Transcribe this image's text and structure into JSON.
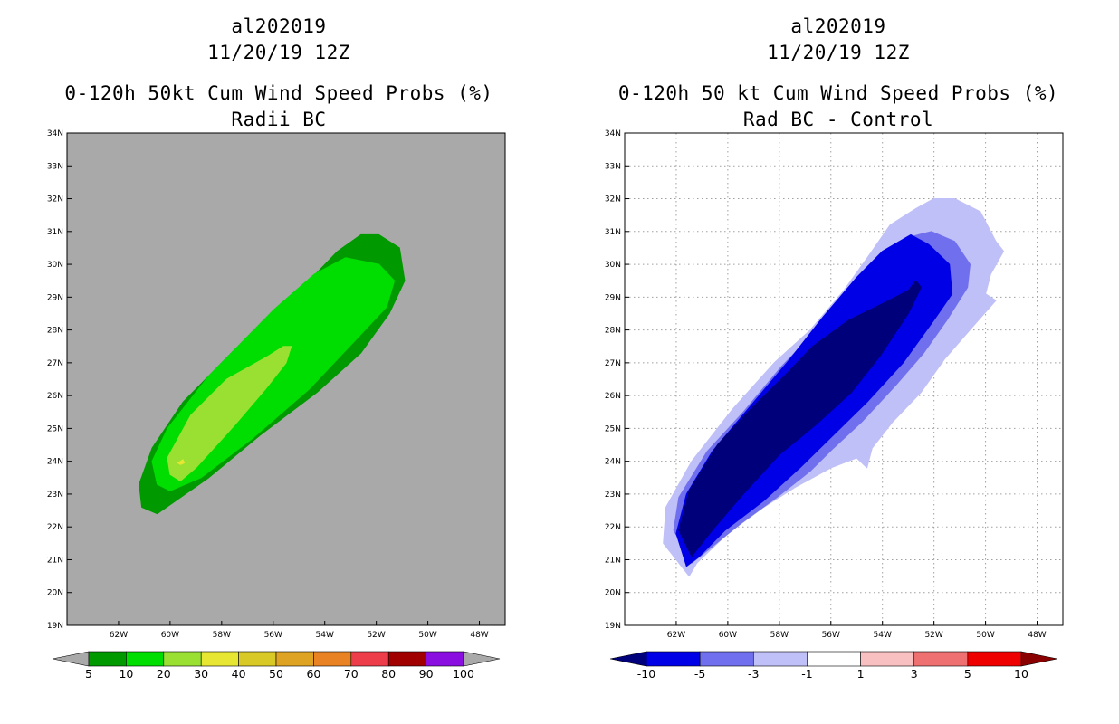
{
  "panels": [
    {
      "storm_id": "al202019",
      "datetime": "11/20/19 12Z",
      "title": "0-120h 50kt Cum Wind Speed Probs (%)",
      "subtitle": "Radii BC",
      "background": "#a9a9a9",
      "grid": false
    },
    {
      "storm_id": "al202019",
      "datetime": "11/20/19 12Z",
      "title": "0-120h 50 kt Cum Wind Speed Probs (%)",
      "subtitle": "Rad BC - Control",
      "background": "#ffffff",
      "grid": true
    }
  ],
  "chart_data": [
    {
      "type": "filled-contour",
      "title": "0-120h 50kt Cum Wind Speed Probs (%)",
      "subtitle": "Radii BC",
      "xlim": [
        -64,
        -47
      ],
      "ylim": [
        19,
        34
      ],
      "x_ticks": [
        -62,
        -60,
        -58,
        -56,
        -54,
        -52,
        -50,
        -48
      ],
      "x_tick_labels": [
        "62W",
        "60W",
        "58W",
        "56W",
        "54W",
        "52W",
        "50W",
        "48W"
      ],
      "y_ticks": [
        19,
        20,
        21,
        22,
        23,
        24,
        25,
        26,
        27,
        28,
        29,
        30,
        31,
        32,
        33,
        34
      ],
      "y_tick_labels": [
        "19N",
        "20N",
        "21N",
        "22N",
        "23N",
        "24N",
        "25N",
        "26N",
        "27N",
        "28N",
        "29N",
        "30N",
        "31N",
        "32N",
        "33N",
        "34N"
      ],
      "colorbar": {
        "labels": [
          "5",
          "10",
          "20",
          "30",
          "40",
          "50",
          "60",
          "70",
          "80",
          "90",
          "100"
        ],
        "colors": [
          "#009900",
          "#00dd00",
          "#99e033",
          "#e6e633",
          "#d9c926",
          "#dfa323",
          "#e88222",
          "#ee3d4a",
          "#a00000",
          "#8a0ee0"
        ],
        "under_color": "#a9a9a9",
        "over_color": "#a9a9a9"
      },
      "regions": [
        {
          "level": "5-10",
          "color": "#009900",
          "polygon": [
            [
              -61.1,
              22.6
            ],
            [
              -61.2,
              23.3
            ],
            [
              -60.7,
              24.4
            ],
            [
              -59.5,
              25.8
            ],
            [
              -57.5,
              27.4
            ],
            [
              -55.1,
              29.1
            ],
            [
              -53.5,
              30.4
            ],
            [
              -52.6,
              30.9
            ],
            [
              -51.9,
              30.9
            ],
            [
              -51.1,
              30.5
            ],
            [
              -50.9,
              29.5
            ],
            [
              -51.5,
              28.5
            ],
            [
              -52.6,
              27.3
            ],
            [
              -54.3,
              26.1
            ],
            [
              -56.5,
              24.8
            ],
            [
              -58.5,
              23.5
            ],
            [
              -60.5,
              22.4
            ]
          ]
        },
        {
          "level": "10-20",
          "color": "#00dd00",
          "polygon": [
            [
              -60.5,
              23.3
            ],
            [
              -60.7,
              24.0
            ],
            [
              -60.1,
              25.0
            ],
            [
              -58.5,
              26.6
            ],
            [
              -56.0,
              28.6
            ],
            [
              -54.4,
              29.7
            ],
            [
              -53.2,
              30.2
            ],
            [
              -51.9,
              30.0
            ],
            [
              -51.3,
              29.5
            ],
            [
              -51.6,
              28.7
            ],
            [
              -52.8,
              27.7
            ],
            [
              -54.6,
              26.2
            ],
            [
              -56.8,
              24.7
            ],
            [
              -58.8,
              23.5
            ],
            [
              -60.0,
              23.1
            ]
          ]
        },
        {
          "level": "20-30",
          "color": "#99e033",
          "polygon": [
            [
              -60.0,
              23.6
            ],
            [
              -60.1,
              24.1
            ],
            [
              -59.2,
              25.4
            ],
            [
              -57.8,
              26.5
            ],
            [
              -56.2,
              27.2
            ],
            [
              -55.6,
              27.5
            ],
            [
              -55.3,
              27.5
            ],
            [
              -55.5,
              27.0
            ],
            [
              -56.3,
              26.2
            ],
            [
              -57.5,
              25.1
            ],
            [
              -59.0,
              23.8
            ],
            [
              -59.6,
              23.4
            ]
          ]
        },
        {
          "level": "30-40",
          "color": "#e6e633",
          "polygon": [
            [
              -59.7,
              23.95
            ],
            [
              -59.5,
              24.05
            ],
            [
              -59.45,
              23.95
            ],
            [
              -59.6,
              23.9
            ]
          ]
        }
      ]
    },
    {
      "type": "filled-contour",
      "title": "0-120h 50 kt Cum Wind Speed Probs (%)",
      "subtitle": "Rad BC - Control",
      "xlim": [
        -64,
        -47
      ],
      "ylim": [
        19,
        34
      ],
      "x_ticks": [
        -62,
        -60,
        -58,
        -56,
        -54,
        -52,
        -50,
        -48
      ],
      "x_tick_labels": [
        "62W",
        "60W",
        "58W",
        "56W",
        "54W",
        "52W",
        "50W",
        "48W"
      ],
      "y_ticks": [
        19,
        20,
        21,
        22,
        23,
        24,
        25,
        26,
        27,
        28,
        29,
        30,
        31,
        32,
        33,
        34
      ],
      "y_tick_labels": [
        "19N",
        "20N",
        "21N",
        "22N",
        "23N",
        "24N",
        "25N",
        "26N",
        "27N",
        "28N",
        "29N",
        "30N",
        "31N",
        "32N",
        "33N",
        "34N"
      ],
      "colorbar": {
        "labels": [
          "-10",
          "-5",
          "-3",
          "-1",
          "1",
          "3",
          "5",
          "10"
        ],
        "colors": [
          "#0000e6",
          "#7070ee",
          "#c0c0f8",
          "#ffffff",
          "#f8c0c0",
          "#ee7070",
          "#ee0000"
        ],
        "under_color": "#00007a",
        "over_color": "#8a0000"
      },
      "regions": [
        {
          "level": "-3 to -1",
          "color": "#c0c0f8",
          "polygon": [
            [
              -61.5,
              20.5
            ],
            [
              -62.5,
              21.5
            ],
            [
              -62.4,
              22.6
            ],
            [
              -61.4,
              24.0
            ],
            [
              -59.8,
              25.6
            ],
            [
              -58.2,
              27.0
            ],
            [
              -56.8,
              28.0
            ],
            [
              -55.5,
              29.2
            ],
            [
              -54.5,
              30.3
            ],
            [
              -53.7,
              31.2
            ],
            [
              -52.7,
              31.7
            ],
            [
              -52.0,
              32.0
            ],
            [
              -51.2,
              32.0
            ],
            [
              -50.2,
              31.6
            ],
            [
              -49.6,
              30.7
            ],
            [
              -49.3,
              30.4
            ],
            [
              -49.8,
              29.7
            ],
            [
              -50.0,
              29.1
            ],
            [
              -49.6,
              28.9
            ],
            [
              -50.5,
              28.1
            ],
            [
              -51.6,
              27.1
            ],
            [
              -52.5,
              26.1
            ],
            [
              -53.6,
              25.2
            ],
            [
              -54.4,
              24.4
            ],
            [
              -54.6,
              23.8
            ],
            [
              -55.0,
              24.1
            ],
            [
              -56.0,
              23.8
            ],
            [
              -57.4,
              23.2
            ],
            [
              -58.6,
              22.6
            ],
            [
              -60.0,
              21.8
            ],
            [
              -61.2,
              20.9
            ]
          ]
        },
        {
          "level": "-5 to -3",
          "color": "#7070ee",
          "polygon": [
            [
              -61.4,
              20.9
            ],
            [
              -62.1,
              21.9
            ],
            [
              -61.9,
              22.9
            ],
            [
              -60.8,
              24.3
            ],
            [
              -59.4,
              25.5
            ],
            [
              -57.9,
              26.9
            ],
            [
              -56.3,
              28.2
            ],
            [
              -55.0,
              29.4
            ],
            [
              -54.1,
              30.3
            ],
            [
              -53.1,
              30.8
            ],
            [
              -52.1,
              31.0
            ],
            [
              -51.2,
              30.7
            ],
            [
              -50.6,
              30.0
            ],
            [
              -50.7,
              29.3
            ],
            [
              -51.5,
              28.3
            ],
            [
              -52.4,
              27.3
            ],
            [
              -53.5,
              26.3
            ],
            [
              -54.8,
              25.2
            ],
            [
              -55.9,
              24.4
            ],
            [
              -56.8,
              23.7
            ],
            [
              -58.1,
              22.9
            ],
            [
              -59.5,
              22.1
            ],
            [
              -60.6,
              21.4
            ]
          ]
        },
        {
          "level": "-10 to -5",
          "color": "#0000e6",
          "polygon": [
            [
              -61.6,
              20.8
            ],
            [
              -62.0,
              21.8
            ],
            [
              -61.6,
              23.0
            ],
            [
              -60.6,
              24.3
            ],
            [
              -59.1,
              25.7
            ],
            [
              -57.6,
              27.1
            ],
            [
              -56.3,
              28.4
            ],
            [
              -55.0,
              29.6
            ],
            [
              -54.0,
              30.4
            ],
            [
              -52.9,
              30.9
            ],
            [
              -52.2,
              30.6
            ],
            [
              -51.4,
              30.0
            ],
            [
              -51.3,
              29.1
            ],
            [
              -52.0,
              28.3
            ],
            [
              -53.2,
              27.0
            ],
            [
              -54.6,
              25.8
            ],
            [
              -55.9,
              24.8
            ],
            [
              -57.2,
              23.8
            ],
            [
              -58.6,
              22.8
            ],
            [
              -60.1,
              21.9
            ],
            [
              -61.1,
              21.1
            ]
          ]
        },
        {
          "level": "< -10",
          "color": "#00007a",
          "polygon": [
            [
              -61.4,
              21.1
            ],
            [
              -61.9,
              21.9
            ],
            [
              -61.5,
              23.1
            ],
            [
              -60.4,
              24.5
            ],
            [
              -59.1,
              25.6
            ],
            [
              -57.8,
              26.6
            ],
            [
              -56.7,
              27.5
            ],
            [
              -55.3,
              28.3
            ],
            [
              -54.0,
              28.8
            ],
            [
              -53.0,
              29.2
            ],
            [
              -52.7,
              29.5
            ],
            [
              -52.5,
              29.3
            ],
            [
              -53.0,
              28.5
            ],
            [
              -54.1,
              27.2
            ],
            [
              -55.2,
              26.1
            ],
            [
              -56.6,
              25.1
            ],
            [
              -58.0,
              24.2
            ],
            [
              -59.4,
              23.0
            ],
            [
              -60.6,
              21.9
            ]
          ]
        }
      ]
    }
  ]
}
